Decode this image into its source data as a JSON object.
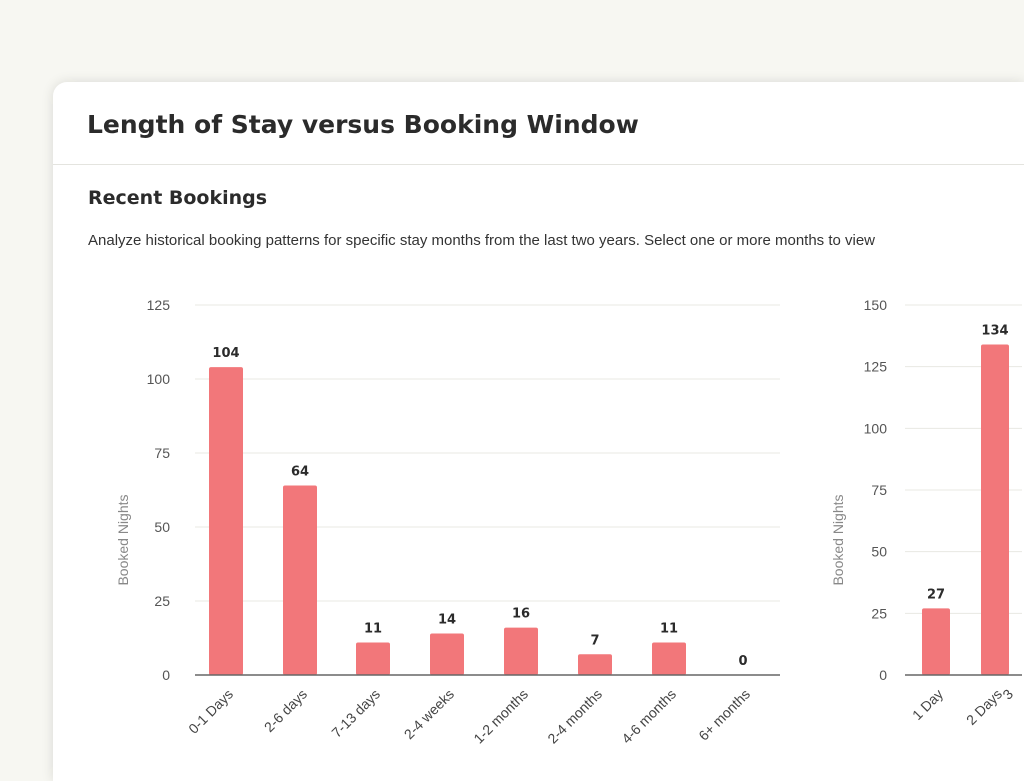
{
  "header": {
    "title": "Length of Stay versus Booking Window"
  },
  "section": {
    "title": "Recent Bookings",
    "description": "Analyze historical booking patterns for specific stay months from the last two years. Select one or more months to view"
  },
  "chart_data": [
    {
      "type": "bar",
      "title": "",
      "xlabel": "",
      "ylabel": "Booked Nights",
      "ylim": [
        0,
        125
      ],
      "yticks": [
        0,
        25,
        50,
        75,
        100,
        125
      ],
      "categories": [
        "0-1 Days",
        "2-6 days",
        "7-13 days",
        "2-4 weeks",
        "1-2 months",
        "2-4 months",
        "4-6 months",
        "6+ months"
      ],
      "values": [
        104,
        64,
        11,
        14,
        16,
        7,
        11,
        0
      ],
      "color": "#f2777a",
      "grid": true
    },
    {
      "type": "bar",
      "title": "",
      "xlabel": "",
      "ylabel": "Booked Nights",
      "ylim": [
        0,
        150
      ],
      "yticks": [
        0,
        25,
        50,
        75,
        100,
        125,
        150
      ],
      "categories": [
        "1 Day",
        "2 Days",
        "3"
      ],
      "values": [
        27,
        134,
        null
      ],
      "color": "#f2777a",
      "grid": true
    }
  ]
}
